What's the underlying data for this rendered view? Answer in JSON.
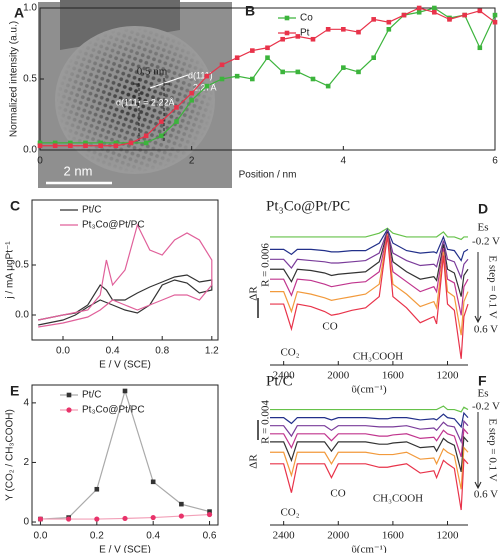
{
  "image": {
    "label": "A",
    "scale_bar": "2 nm",
    "annotations": [
      "d(111)",
      "2.27Å",
      "d(111) = 2.22Å"
    ]
  },
  "chart_data": [
    {
      "type": "line",
      "label": "B",
      "xlabel": "Position / nm",
      "ylabel": "Normalized intensity (a.u.)",
      "xlim": [
        0,
        6
      ],
      "ylim": [
        0,
        1.0
      ],
      "xticks": [
        0,
        2,
        4,
        6
      ],
      "yticks": [
        {
          "value": 0,
          "label": "0.0"
        },
        {
          "value": 0.5,
          "label": "0.5"
        },
        {
          "value": 1.0,
          "label": "1.0"
        }
      ],
      "frame": true,
      "legend": "upper-center",
      "annotations": [
        "0.5 nm"
      ],
      "x": [
        0,
        0.2,
        0.4,
        0.6,
        0.8,
        1.0,
        1.2,
        1.4,
        1.6,
        1.8,
        2.0,
        2.2,
        2.4,
        2.6,
        2.8,
        3.0,
        3.2,
        3.4,
        3.6,
        3.8,
        4.0,
        4.2,
        4.4,
        4.6,
        4.8,
        5.0,
        5.2,
        5.4,
        5.6,
        5.8,
        6.0
      ],
      "series": [
        {
          "name": "Co",
          "color": "#3cb43c",
          "marker": "square",
          "values": [
            0.05,
            0.05,
            0.05,
            0.05,
            0.05,
            0.05,
            0.05,
            0.05,
            0.1,
            0.2,
            0.35,
            0.45,
            0.5,
            0.52,
            0.5,
            0.65,
            0.55,
            0.55,
            0.5,
            0.45,
            0.58,
            0.55,
            0.65,
            0.85,
            0.95,
            0.97,
            1.0,
            0.93,
            0.95,
            0.72,
            0.95
          ]
        },
        {
          "name": "Pt",
          "color": "#e8334a",
          "marker": "square",
          "values": [
            0.03,
            0.03,
            0.03,
            0.03,
            0.03,
            0.03,
            0.05,
            0.1,
            0.2,
            0.3,
            0.4,
            0.52,
            0.6,
            0.65,
            0.7,
            0.72,
            0.78,
            0.8,
            0.78,
            0.85,
            0.85,
            0.83,
            0.92,
            0.9,
            0.95,
            1.0,
            0.97,
            0.92,
            0.95,
            0.98,
            0.9
          ]
        }
      ]
    },
    {
      "type": "line",
      "label": "C",
      "xlabel": "E / V (SCE)",
      "ylabel": "j / mA μgPt⁻¹",
      "xlim": [
        -0.25,
        1.25
      ],
      "ylim": [
        -0.25,
        1.15
      ],
      "xticks": [
        {
          "value": 0,
          "label": "0.0"
        },
        {
          "value": 0.4,
          "label": "0.4"
        },
        {
          "value": 0.8,
          "label": "0.8"
        },
        {
          "value": 1.2,
          "label": "1.2"
        }
      ],
      "yticks": [
        {
          "value": 0,
          "label": "0.0"
        },
        {
          "value": 0.5,
          "label": "0.5"
        }
      ],
      "frame": true,
      "legend": "upper-left",
      "series": [
        {
          "name": "Pt/C",
          "color": "#333333",
          "x": [
            -0.2,
            0,
            0.1,
            0.2,
            0.3,
            0.35,
            0.4,
            0.5,
            0.6,
            0.7,
            0.8,
            0.9,
            1.0,
            1.1,
            1.2,
            1.2,
            1.1,
            1.0,
            0.9,
            0.8,
            0.7,
            0.6,
            0.5,
            0.4,
            0.3,
            0.2,
            0.1,
            0,
            -0.2
          ],
          "values": [
            -0.05,
            0.0,
            0.02,
            0.1,
            0.3,
            0.25,
            0.15,
            0.15,
            0.22,
            0.28,
            0.33,
            0.38,
            0.4,
            0.33,
            0.35,
            0.25,
            0.22,
            0.32,
            0.35,
            0.3,
            0.1,
            0.02,
            0.05,
            0.1,
            0.15,
            0.08,
            0.0,
            -0.05,
            -0.1
          ]
        },
        {
          "name": "Pt₃Co@Pt/PC",
          "color": "#e0609a",
          "x": [
            -0.2,
            0,
            0.2,
            0.3,
            0.35,
            0.4,
            0.5,
            0.6,
            0.7,
            0.8,
            0.9,
            1.0,
            1.1,
            1.2,
            1.2,
            1.1,
            1.0,
            0.9,
            0.8,
            0.7,
            0.6,
            0.5,
            0.4,
            0.3,
            0.2,
            0,
            -0.2
          ],
          "values": [
            -0.05,
            0.0,
            0.05,
            0.2,
            0.55,
            0.3,
            0.45,
            0.9,
            0.65,
            0.6,
            0.75,
            0.82,
            0.75,
            0.55,
            0.3,
            0.15,
            0.2,
            0.2,
            0.15,
            0.1,
            0.05,
            0.1,
            0.15,
            0.05,
            -0.02,
            -0.08,
            -0.12
          ]
        }
      ]
    },
    {
      "type": "line",
      "label": "D",
      "title": "Pt₃Co@Pt/PC",
      "xlabel": "ῦ(cm⁻¹)",
      "ylabel": "ΔR",
      "xlim": [
        2500,
        1050
      ],
      "ylim": [
        -0.5,
        11
      ],
      "xticks": [
        2400,
        2000,
        1600,
        1200
      ],
      "frame": false,
      "annotations": [
        "CO₂",
        "CO",
        "CH₃COOH",
        "Es",
        "-0.2 V",
        "E step = 0.1 V",
        "0.6 V",
        "R = 0.006"
      ],
      "x": [
        2500,
        2400,
        2343,
        2300,
        2200,
        2100,
        2050,
        2000,
        1900,
        1800,
        1700,
        1640,
        1600,
        1500,
        1400,
        1300,
        1280,
        1230,
        1200,
        1150,
        1100,
        1080,
        1050
      ],
      "series": [
        {
          "color": "#66c24a",
          "values": [
            9.8,
            9.8,
            9.8,
            9.8,
            9.8,
            9.8,
            9.8,
            9.8,
            9.8,
            9.8,
            10.1,
            10.5,
            10.1,
            9.8,
            9.8,
            9.8,
            9.8,
            10.2,
            9.8,
            9.8,
            9.6,
            9.8,
            9.8
          ]
        },
        {
          "color": "#22308a",
          "values": [
            8.8,
            8.8,
            8.4,
            8.8,
            8.8,
            8.7,
            8.6,
            8.6,
            8.7,
            8.7,
            9.3,
            10.4,
            9.3,
            8.7,
            8.5,
            8.6,
            8.5,
            9.8,
            8.8,
            8.7,
            7.9,
            8.6,
            8.8
          ]
        },
        {
          "color": "#7a3c9a",
          "values": [
            8.0,
            8.0,
            7.3,
            8.0,
            7.9,
            7.8,
            7.7,
            7.7,
            7.8,
            7.9,
            8.5,
            10.3,
            8.5,
            7.9,
            7.5,
            7.6,
            7.4,
            9.5,
            8.0,
            7.8,
            6.5,
            7.6,
            8.0
          ]
        },
        {
          "color": "#333333",
          "values": [
            7.2,
            7.2,
            6.2,
            7.2,
            7.1,
            6.9,
            6.7,
            6.8,
            6.9,
            7.0,
            7.8,
            10.2,
            7.8,
            7.0,
            6.4,
            6.6,
            6.3,
            9.2,
            7.2,
            6.9,
            5.0,
            6.7,
            7.2
          ]
        },
        {
          "color": "#c0358e",
          "values": [
            6.4,
            6.4,
            5.1,
            6.4,
            6.3,
            6.0,
            5.8,
            5.9,
            6.1,
            6.2,
            7.0,
            10.1,
            7.0,
            6.2,
            5.4,
            5.8,
            5.4,
            8.9,
            6.4,
            6.1,
            3.5,
            5.8,
            6.4
          ]
        },
        {
          "color": "#f29a3c",
          "values": [
            5.4,
            5.4,
            3.8,
            5.4,
            5.2,
            4.9,
            4.7,
            4.8,
            5.0,
            5.2,
            6.0,
            10.0,
            6.0,
            5.2,
            4.2,
            4.6,
            4.1,
            8.6,
            5.4,
            5.0,
            1.9,
            4.6,
            5.4
          ]
        },
        {
          "color": "#e8334a",
          "values": [
            4.4,
            4.4,
            2.4,
            4.4,
            4.2,
            3.8,
            3.5,
            3.6,
            3.9,
            4.1,
            5.0,
            9.9,
            5.0,
            4.1,
            2.9,
            3.4,
            2.8,
            8.3,
            4.4,
            3.9,
            0.0,
            3.4,
            4.4
          ]
        }
      ]
    },
    {
      "type": "line",
      "label": "E",
      "xlabel": "E / V (SCE)",
      "ylabel": "Y (CO₂ / CH₃COOH)",
      "xlim": [
        -0.03,
        0.63
      ],
      "ylim": [
        -0.1,
        4.6
      ],
      "xticks": [
        {
          "value": 0,
          "label": "0.0"
        },
        {
          "value": 0.2,
          "label": "0.2"
        },
        {
          "value": 0.4,
          "label": "0.4"
        },
        {
          "value": 0.6,
          "label": "0.6"
        }
      ],
      "yticks": [
        0,
        2,
        4
      ],
      "frame": true,
      "legend": "upper-left",
      "x": [
        0,
        0.1,
        0.2,
        0.3,
        0.4,
        0.5,
        0.6
      ],
      "series": [
        {
          "name": "Pt/C",
          "color": "#333333",
          "line_color": "#aaaaaa",
          "marker": "square",
          "values": [
            0.1,
            0.15,
            1.1,
            4.4,
            1.35,
            0.6,
            0.35
          ]
        },
        {
          "name": "Pt₃Co@Pt/PC",
          "color": "#e8336a",
          "line_color": "#f2a0b8",
          "marker": "circle",
          "values": [
            0.1,
            0.1,
            0.1,
            0.12,
            0.15,
            0.2,
            0.25
          ]
        }
      ]
    },
    {
      "type": "line",
      "label": "F",
      "title": "Pt/C",
      "xlabel": "ῦ(cm⁻¹)",
      "ylabel": "ΔR",
      "xlim": [
        2500,
        1050
      ],
      "ylim": [
        -0.5,
        10.5
      ],
      "xticks": [
        2400,
        2000,
        1600,
        1200
      ],
      "frame": false,
      "annotations": [
        "CO₂",
        "CO",
        "CH₃COOH",
        "Es",
        "-0.2 V",
        "E step = 0.1 V",
        "0.6 V",
        "R = 0.004"
      ],
      "x": [
        2500,
        2400,
        2343,
        2300,
        2200,
        2100,
        2050,
        2000,
        1900,
        1800,
        1700,
        1640,
        1600,
        1500,
        1400,
        1300,
        1280,
        1230,
        1200,
        1150,
        1100,
        1080,
        1050
      ],
      "series": [
        {
          "color": "#66c24a",
          "values": [
            9.5,
            9.5,
            9.5,
            9.5,
            9.5,
            9.5,
            9.5,
            9.5,
            9.5,
            9.5,
            9.5,
            9.5,
            9.5,
            9.5,
            9.5,
            9.5,
            9.5,
            9.8,
            9.5,
            9.5,
            9.3,
            9.7,
            9.5
          ]
        },
        {
          "color": "#22308a",
          "values": [
            8.8,
            8.8,
            8.3,
            8.8,
            8.8,
            8.8,
            8.6,
            8.8,
            8.8,
            8.8,
            8.7,
            8.7,
            8.8,
            8.8,
            8.6,
            8.7,
            8.6,
            9.1,
            8.8,
            8.7,
            8.0,
            9.2,
            8.8
          ]
        },
        {
          "color": "#7a3c9a",
          "values": [
            8.1,
            8.1,
            7.2,
            8.1,
            8.1,
            8.1,
            7.7,
            8.1,
            8.1,
            8.1,
            8.0,
            8.0,
            8.0,
            8.1,
            7.8,
            7.9,
            7.7,
            8.4,
            8.1,
            8.0,
            6.7,
            8.5,
            8.1
          ]
        },
        {
          "color": "#c0358e",
          "values": [
            7.4,
            7.4,
            6.2,
            7.4,
            7.4,
            7.4,
            6.8,
            7.4,
            7.4,
            7.4,
            7.2,
            7.2,
            7.3,
            7.4,
            7.0,
            7.1,
            6.8,
            7.7,
            7.4,
            7.2,
            5.4,
            7.8,
            7.4
          ]
        },
        {
          "color": "#333333",
          "values": [
            6.7,
            6.7,
            5.1,
            6.7,
            6.7,
            6.7,
            5.9,
            6.7,
            6.7,
            6.7,
            6.5,
            6.5,
            6.6,
            6.7,
            6.2,
            6.3,
            5.9,
            7.0,
            6.7,
            6.4,
            4.1,
            7.1,
            6.7
          ]
        },
        {
          "color": "#f29a3c",
          "values": [
            5.8,
            5.8,
            3.8,
            5.8,
            5.8,
            5.8,
            4.8,
            5.8,
            5.8,
            5.8,
            5.6,
            5.6,
            5.6,
            5.8,
            5.2,
            5.3,
            4.8,
            6.1,
            5.8,
            5.5,
            2.6,
            6.2,
            5.8
          ]
        },
        {
          "color": "#e8334a",
          "values": [
            4.8,
            4.8,
            2.3,
            4.8,
            4.8,
            4.8,
            3.6,
            4.8,
            4.8,
            4.8,
            4.5,
            4.5,
            4.6,
            4.8,
            4.0,
            4.2,
            3.6,
            5.1,
            4.8,
            4.4,
            0.8,
            5.2,
            4.8
          ]
        }
      ]
    }
  ]
}
